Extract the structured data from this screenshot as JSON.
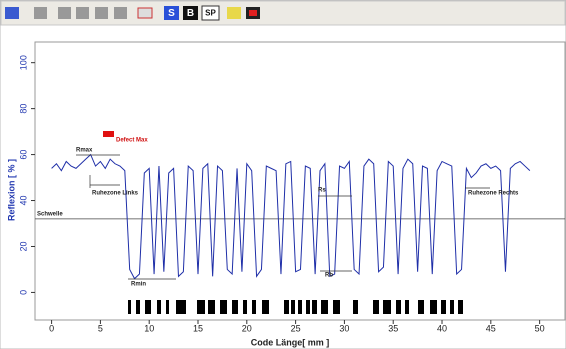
{
  "toolbar": {
    "buttons": [
      "S",
      "B",
      "SP"
    ]
  },
  "chart_data": {
    "type": "line",
    "x_label": "Code Länge[ mm ]",
    "y_label": "Reflexion [ % ]",
    "xlim": [
      -1.7,
      52.6
    ],
    "ylim": [
      -12,
      109
    ],
    "xticks": [
      0,
      5,
      10,
      15,
      20,
      25,
      30,
      35,
      40,
      45,
      50
    ],
    "yticks": [
      0,
      20,
      40,
      60,
      80,
      100
    ],
    "threshold": 32,
    "annotations": [
      "Defect Max",
      "Rmax",
      "Ruhezone Links",
      "Schwelle",
      "Rs",
      "Rb",
      "Rmin",
      "Ruhezone Rechts"
    ],
    "series": [
      {
        "color": "#1f2fa8",
        "x": [
          0,
          0.5,
          1,
          1.5,
          2,
          2.5,
          3,
          3.5,
          4,
          4.5,
          5,
          5.5,
          6,
          6.5,
          7,
          7.5,
          8,
          8.5,
          9,
          9.5,
          10,
          10.5,
          11,
          11.5,
          12,
          12.5,
          13,
          13.5,
          14,
          14.5,
          15,
          15.5,
          16,
          16.5,
          17,
          17.5,
          18,
          18.5,
          19,
          19.5,
          20,
          20.5,
          21,
          21.5,
          22,
          22.5,
          23,
          23.5,
          24,
          24.5,
          25,
          25.5,
          26,
          26.5,
          27,
          27.5,
          28,
          28.5,
          29,
          29.5,
          30,
          30.5,
          31,
          31.5,
          32,
          32.5,
          33,
          33.5,
          34,
          34.5,
          35,
          35.5,
          36,
          36.5,
          37,
          37.5,
          38,
          38.5,
          39,
          39.5,
          40,
          40.5,
          41,
          41.5,
          42,
          42.5,
          43,
          43.5,
          44,
          44.5,
          45,
          45.5,
          46,
          46.5,
          47,
          47.5,
          48,
          48.5,
          49
        ],
        "values": [
          54,
          56,
          53,
          57,
          55,
          54,
          56,
          58,
          60,
          55,
          57,
          54,
          58,
          56,
          55,
          53,
          10,
          6,
          8,
          52,
          54,
          8,
          55,
          9,
          52,
          54,
          7,
          9,
          55,
          53,
          8,
          54,
          56,
          7,
          55,
          53,
          10,
          8,
          54,
          9,
          56,
          53,
          7,
          10,
          55,
          54,
          53,
          8,
          56,
          57,
          9,
          10,
          55,
          54,
          8,
          53,
          56,
          7,
          8,
          55,
          54,
          57,
          10,
          8,
          55,
          58,
          56,
          9,
          11,
          57,
          55,
          8,
          54,
          58,
          56,
          9,
          55,
          54,
          8,
          53,
          57,
          56,
          55,
          8,
          10,
          54,
          50,
          52,
          55,
          56,
          54,
          55,
          53,
          9,
          54,
          56,
          57,
          55,
          53
        ]
      }
    ]
  }
}
